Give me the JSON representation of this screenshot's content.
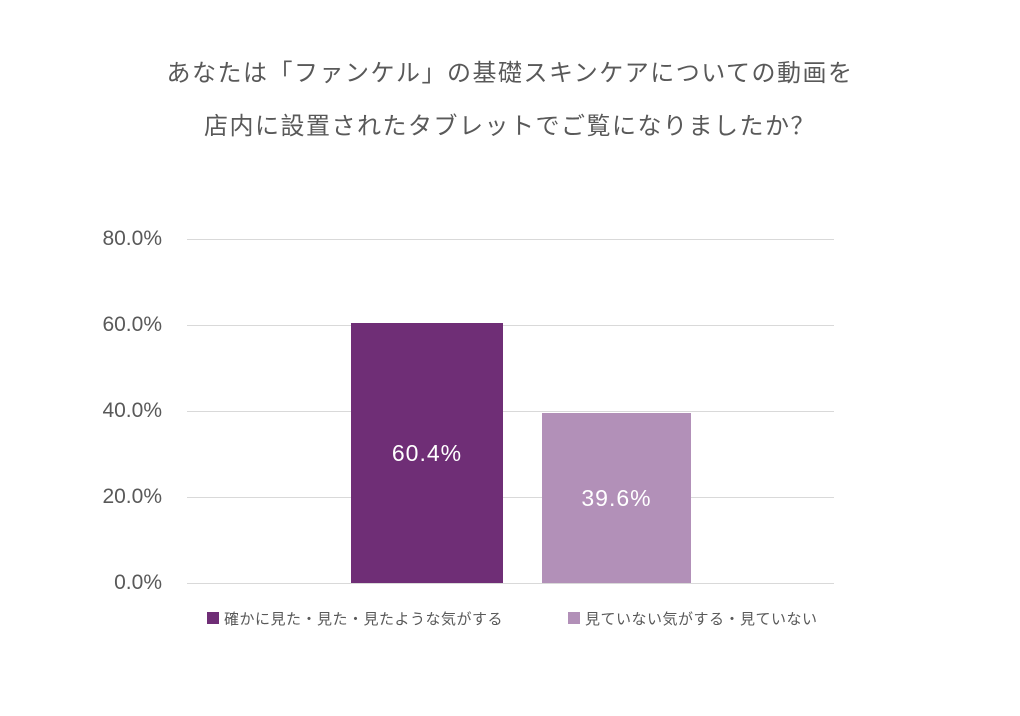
{
  "title": {
    "line1": "あなたは「ファンケル」の基礎スキンケアについての動画を",
    "line2": "店内に設置されたタブレットでご覧になりましたか？"
  },
  "chart_data": {
    "type": "bar",
    "title": "あなたは「ファンケル」の基礎スキンケアについての動画を店内に設置されたタブレットでご覧になりましたか？",
    "categories": [
      "確かに見た・見た・見たような気がする",
      "見ていない気がする・見ていない"
    ],
    "values": [
      60.4,
      39.6
    ],
    "value_labels": [
      "60.4%",
      "39.6%"
    ],
    "bar_colors": [
      "#6F2E76",
      "#B290B8"
    ],
    "xlabel": "",
    "ylabel": "",
    "ylim": [
      0,
      80
    ],
    "ytick_values": [
      80,
      60,
      40,
      20,
      0
    ],
    "ytick_labels": [
      "80.0%",
      "60.0%",
      "40.0%",
      "20.0%",
      "0.0%"
    ],
    "grid": true,
    "legend_position": "bottom",
    "legend": [
      {
        "label": "確かに見た・見た・見たような気がする",
        "color": "#6F2E76"
      },
      {
        "label": "見ていない気がする・見ていない",
        "color": "#B290B8"
      }
    ]
  },
  "colors": {
    "background": "#FFFFFF",
    "title_text": "#595959",
    "axis_text": "#595959",
    "legend_text": "#595959",
    "gridline": "#D9D9D9",
    "bar_label_text": "#FFFFFF"
  }
}
